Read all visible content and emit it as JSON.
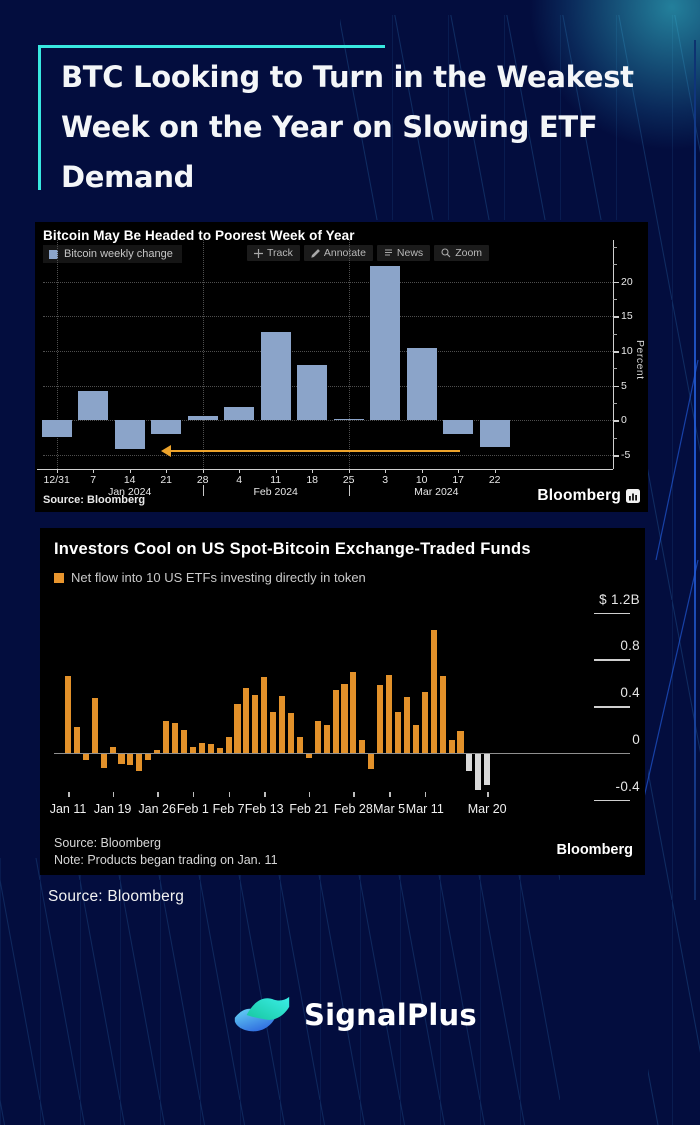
{
  "page": {
    "background": "#030d3e",
    "accent_color": "#38e8e0",
    "header": {
      "title_lines": [
        "BTC Looking to Turn in the Weakest",
        "Week on the Year on Slowing ETF",
        "Demand"
      ]
    },
    "footer_source": "Source: Bloomberg",
    "brand": {
      "name": "SignalPlus"
    }
  },
  "chart_data": [
    {
      "type": "bar",
      "title": "Bitcoin May Be Headed to Poorest Week of Year",
      "legend": [
        {
          "label": "Bitcoin weekly change",
          "color": "#8ba4c9"
        }
      ],
      "toolbar": [
        "Track",
        "Annotate",
        "News",
        "Zoom"
      ],
      "ylabel": "Percent",
      "ylim": [
        -7,
        26
      ],
      "yticks_major": [
        20,
        15,
        10,
        5,
        0,
        -5
      ],
      "yticks_minor": [
        25,
        22.5,
        17.5,
        12.5,
        7.5,
        2.5,
        -2.5
      ],
      "grid": "dotted",
      "categories": [
        "12/31",
        "7",
        "14",
        "21",
        "28",
        "4",
        "11",
        "18",
        "25",
        "3",
        "10",
        "17",
        "22"
      ],
      "values": [
        -2.4,
        4.3,
        -4.2,
        -1.9,
        0.6,
        2.0,
        12.8,
        8.0,
        0.15,
        22.3,
        10.5,
        -1.9,
        -3.9
      ],
      "bar_color": "#8ba4c9",
      "month_labels": [
        {
          "label": "Jan 2024",
          "index": 2
        },
        {
          "label": "Feb 2024",
          "index": 6
        },
        {
          "label": "Mar 2024",
          "index": 10.4
        }
      ],
      "month_separator_indices": [
        4,
        8
      ],
      "month_gridline_indices": [
        0,
        4,
        8
      ],
      "annotation_arrow": {
        "direction": "left",
        "y_value": -4.4,
        "from_index": 11.05,
        "to_index": 2.9,
        "color": "#eda32b"
      },
      "source": "Source:  Bloomberg",
      "brand": "Bloomberg"
    },
    {
      "type": "bar",
      "title": "Investors Cool on US Spot-Bitcoin Exchange-Traded Funds",
      "legend": [
        {
          "label": "Net flow into 10 US ETFs investing directly in token",
          "color": "#e8952e"
        }
      ],
      "ylim": [
        -0.45,
        1.25
      ],
      "yticks": [
        {
          "label": "$ 1.2B",
          "value": 1.2
        },
        {
          "label": "0.8",
          "value": 0.8
        },
        {
          "label": "0.4",
          "value": 0.4
        },
        {
          "label": "0",
          "value": 0
        },
        {
          "label": "-0.4",
          "value": -0.4
        }
      ],
      "values": [
        0.66,
        0.22,
        -0.06,
        0.47,
        -0.13,
        0.05,
        -0.09,
        -0.1,
        -0.15,
        -0.06,
        0.03,
        0.27,
        0.26,
        0.2,
        0.05,
        0.09,
        0.08,
        0.04,
        0.14,
        0.42,
        0.56,
        0.5,
        0.65,
        0.35,
        0.49,
        0.34,
        0.14,
        -0.04,
        0.27,
        0.24,
        0.54,
        0.59,
        0.69,
        0.11,
        -0.14,
        0.58,
        0.67,
        0.35,
        0.48,
        0.24,
        0.52,
        1.05,
        0.66,
        0.11,
        0.19,
        -0.15,
        -0.32,
        -0.27
      ],
      "bar_color": "#e2912a",
      "gray_bar_color": "#d9d9d9",
      "gray_indices": [
        45,
        46,
        47
      ],
      "xticks": [
        {
          "label": "Jan 11",
          "index": 0
        },
        {
          "label": "Jan 19",
          "index": 5
        },
        {
          "label": "Jan 26",
          "index": 10
        },
        {
          "label": "Feb 1",
          "index": 14
        },
        {
          "label": "Feb 7",
          "index": 18
        },
        {
          "label": "Feb 13",
          "index": 22
        },
        {
          "label": "Feb 21",
          "index": 27
        },
        {
          "label": "Feb 28",
          "index": 32
        },
        {
          "label": "Mar 5",
          "index": 36
        },
        {
          "label": "Mar 11",
          "index": 40
        },
        {
          "label": "Mar 20",
          "index": 47
        }
      ],
      "source": "Source: Bloomberg",
      "note": "Note: Products began trading on Jan. 11",
      "brand": "Bloomberg"
    }
  ]
}
